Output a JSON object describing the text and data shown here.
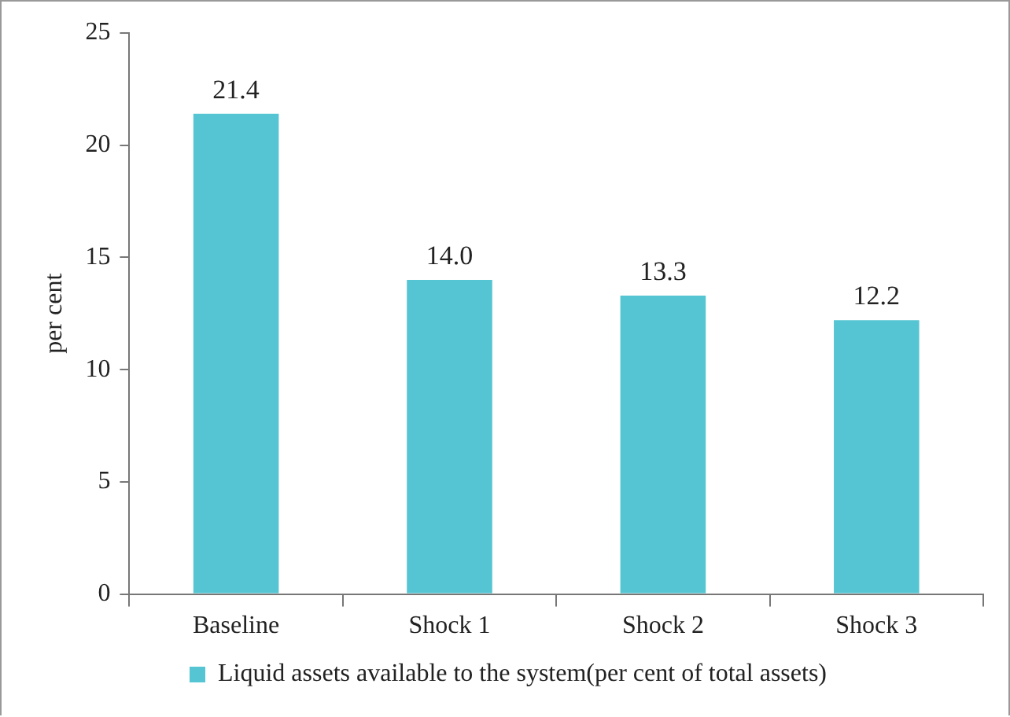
{
  "chart_data": {
    "type": "bar",
    "ylabel": "per cent",
    "categories": [
      "Baseline",
      "Shock 1",
      "Shock 2",
      "Shock 3"
    ],
    "series": [
      {
        "name": "Liquid assets available to the system(per cent of total assets)",
        "color": "#56c5d3",
        "values": [
          21.4,
          14.0,
          13.3,
          12.2
        ]
      }
    ],
    "value_labels": [
      "21.4",
      "14.0",
      "13.3",
      "12.2"
    ],
    "ylim": [
      0,
      25
    ],
    "yticks": [
      0,
      5,
      10,
      15,
      20,
      25
    ],
    "grid": false,
    "legend": "bottom"
  }
}
